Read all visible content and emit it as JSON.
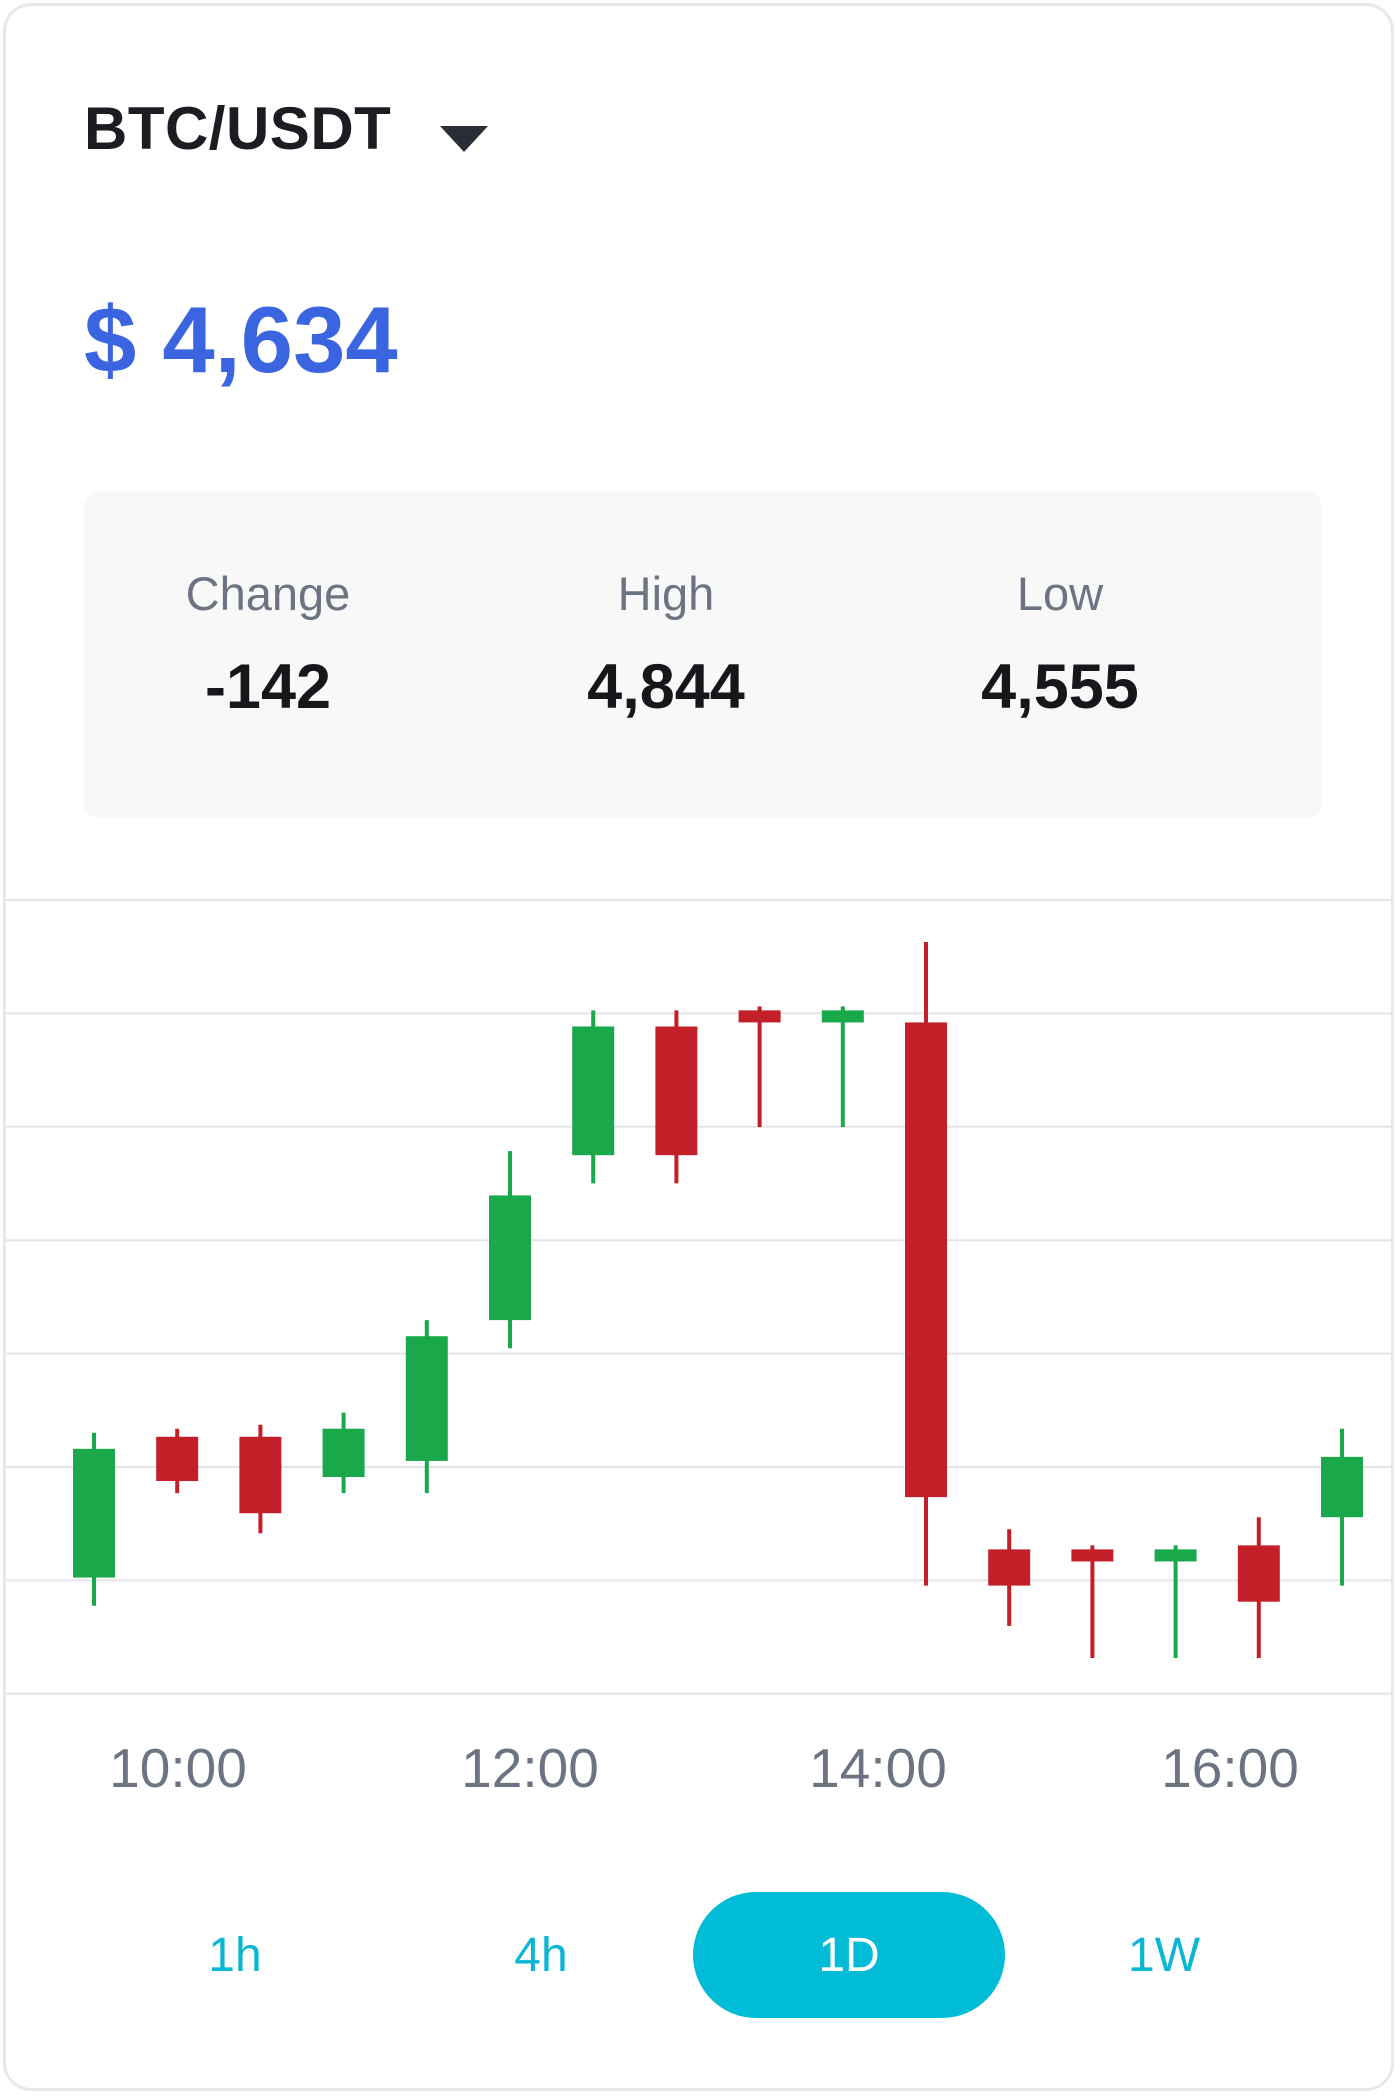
{
  "header": {
    "pair": "BTC/USDT"
  },
  "price": "$ 4,634",
  "stats": [
    {
      "label": "Change",
      "value": "-142"
    },
    {
      "label": "High",
      "value": "4,844"
    },
    {
      "label": "Low",
      "value": "4,555"
    }
  ],
  "colors": {
    "up": "#19a84a",
    "down": "#c31f29",
    "accent": "#00bcd6",
    "price": "#3a64e0"
  },
  "timeframes": {
    "items": [
      {
        "label": "1h",
        "active": false
      },
      {
        "label": "4h",
        "active": false
      },
      {
        "label": "1D",
        "active": true
      },
      {
        "label": "1W",
        "active": false
      }
    ]
  },
  "chart_data": {
    "type": "candlestick",
    "x_tick_labels": [
      "10:00",
      "12:00",
      "14:00",
      "16:00"
    ],
    "grid": true,
    "candles": [
      {
        "open": 4605,
        "close": 4637,
        "high": 4641,
        "low": 4598
      },
      {
        "open": 4640,
        "close": 4629,
        "high": 4642,
        "low": 4626
      },
      {
        "open": 4640,
        "close": 4621,
        "high": 4643,
        "low": 4616
      },
      {
        "open": 4630,
        "close": 4642,
        "high": 4646,
        "low": 4626
      },
      {
        "open": 4634,
        "close": 4665,
        "high": 4669,
        "low": 4626
      },
      {
        "open": 4669,
        "close": 4700,
        "high": 4711,
        "low": 4662
      },
      {
        "open": 4710,
        "close": 4742,
        "high": 4746,
        "low": 4703
      },
      {
        "open": 4742,
        "close": 4710,
        "high": 4746,
        "low": 4703
      },
      {
        "open": 4746,
        "close": 4743,
        "high": 4747,
        "low": 4717
      },
      {
        "open": 4743,
        "close": 4746,
        "high": 4747,
        "low": 4717
      },
      {
        "open": 4743,
        "close": 4625,
        "high": 4763,
        "low": 4603
      },
      {
        "open": 4612,
        "close": 4603,
        "high": 4617,
        "low": 4593
      },
      {
        "open": 4612,
        "close": 4609,
        "high": 4613,
        "low": 4585
      },
      {
        "open": 4609,
        "close": 4612,
        "high": 4613,
        "low": 4585
      },
      {
        "open": 4613,
        "close": 4599,
        "high": 4620,
        "low": 4585
      },
      {
        "open": 4620,
        "close": 4635,
        "high": 4642,
        "low": 4603
      }
    ]
  }
}
